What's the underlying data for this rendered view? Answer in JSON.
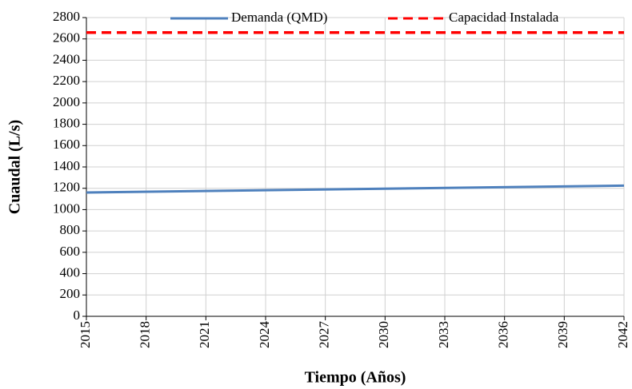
{
  "chart_data": {
    "type": "line",
    "x_label": "Tiempo (Años)",
    "y_label": "Cuaudal (L/s)",
    "x": [
      2015,
      2042
    ],
    "series": [
      {
        "name": "Demanda (QMD)",
        "color": "#4f81bd",
        "style": "solid",
        "values": [
          1160,
          1225
        ]
      },
      {
        "name": "Capacidad Instalada",
        "color": "#ff0000",
        "style": "dashed",
        "values": [
          2660,
          2660
        ]
      }
    ],
    "xlim": [
      2015,
      2042
    ],
    "xticks": [
      2015,
      2018,
      2021,
      2024,
      2027,
      2030,
      2033,
      2036,
      2039,
      2042
    ],
    "ylim": [
      0,
      2800
    ],
    "yticks": [
      0,
      200,
      400,
      600,
      800,
      1000,
      1200,
      1400,
      1600,
      1800,
      2000,
      2200,
      2400,
      2600,
      2800
    ],
    "grid": true,
    "legend": "top"
  }
}
